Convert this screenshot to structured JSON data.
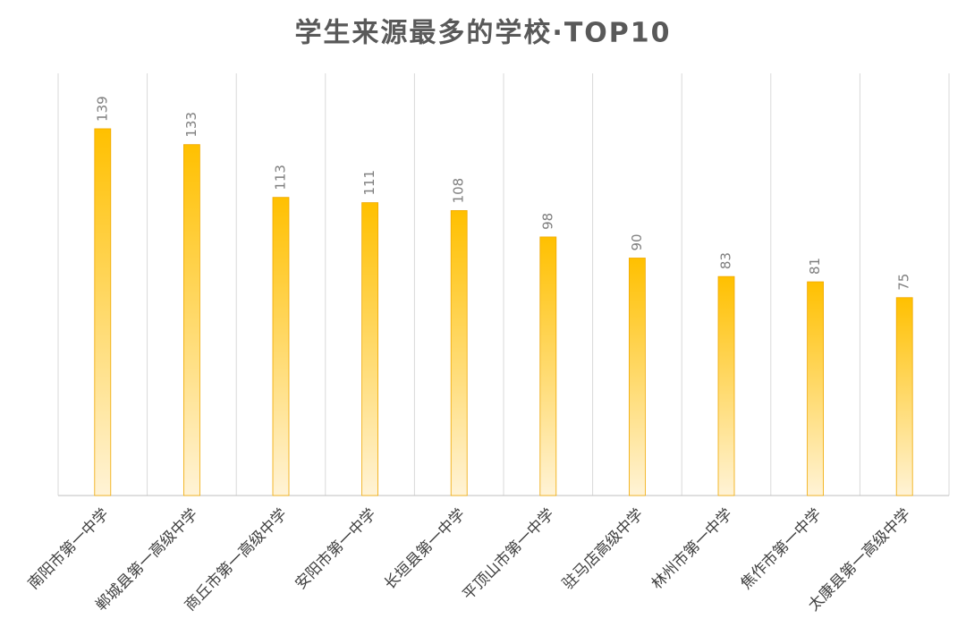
{
  "chart_data": {
    "type": "bar",
    "title": "学生来源最多的学校·TOP10",
    "categories": [
      "南阳市第一中学",
      "郸城县第一高级中学",
      "商丘市第一高级中学",
      "安阳市第一中学",
      "长垣县第一中学",
      "平顶山市第一中学",
      "驻马店高级中学",
      "林州市第一中学",
      "焦作市第一中学",
      "太康县第一高级中学"
    ],
    "values": [
      139,
      133,
      113,
      111,
      108,
      98,
      90,
      83,
      81,
      75
    ],
    "color": "#ffc000",
    "ylim": [
      0,
      160
    ]
  }
}
